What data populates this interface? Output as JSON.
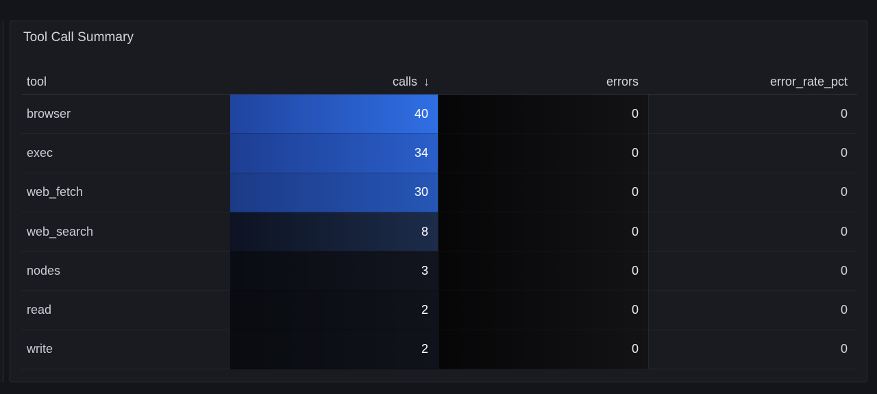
{
  "panel": {
    "title": "Tool Call Summary"
  },
  "table": {
    "columns": [
      {
        "label": "tool",
        "align": "left"
      },
      {
        "label": "calls",
        "align": "right",
        "sorted": "desc"
      },
      {
        "label": "errors",
        "align": "right"
      },
      {
        "label": "error_rate_pct",
        "align": "right"
      }
    ],
    "sort_icon": "↓",
    "rows": [
      {
        "tool": "browser",
        "calls": "40",
        "errors": "0",
        "error_rate_pct": "0",
        "calls_bg_from": "#20449f",
        "calls_bg_to": "#2f6fe4"
      },
      {
        "tool": "exec",
        "calls": "34",
        "errors": "0",
        "error_rate_pct": "0",
        "calls_bg_from": "#1d3e92",
        "calls_bg_to": "#2a5fca"
      },
      {
        "tool": "web_fetch",
        "calls": "30",
        "errors": "0",
        "error_rate_pct": "0",
        "calls_bg_from": "#1c3a86",
        "calls_bg_to": "#2656b6"
      },
      {
        "tool": "web_search",
        "calls": "8",
        "errors": "0",
        "error_rate_pct": "0",
        "calls_bg_from": "#0d1322",
        "calls_bg_to": "#1c2c4a"
      },
      {
        "tool": "nodes",
        "calls": "3",
        "errors": "0",
        "error_rate_pct": "0",
        "calls_bg_from": "#0a0c13",
        "calls_bg_to": "#12151f"
      },
      {
        "tool": "read",
        "calls": "2",
        "errors": "0",
        "error_rate_pct": "0",
        "calls_bg_from": "#090b10",
        "calls_bg_to": "#10131b"
      },
      {
        "tool": "write",
        "calls": "2",
        "errors": "0",
        "error_rate_pct": "0",
        "calls_bg_from": "#090b10",
        "calls_bg_to": "#10131b"
      }
    ],
    "errors_bg_from": "#060607",
    "errors_bg_to": "#131316"
  },
  "colors": {
    "page_background": "#14151a",
    "panel_background": "#1a1b20",
    "panel_border": "#2c2e35",
    "max_value_blue": "#2f6fe4"
  }
}
